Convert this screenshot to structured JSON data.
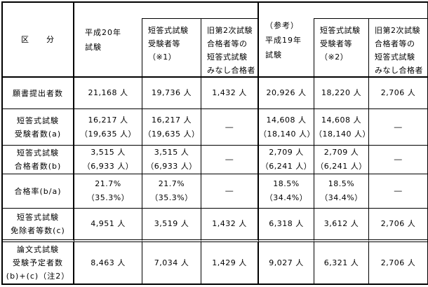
{
  "header": {
    "corner": "区　　分",
    "groups": [
      {
        "label": "平成20年\n試験",
        "sub1": "短答式試験\n受験者等\n（※1）",
        "sub2": "旧第2次試験\n合格者等の\n短答式試験\nみなし合格者"
      },
      {
        "label": "（参考）\n平成19年\n試験",
        "sub1": "短答式試験\n受験者等\n（※2）",
        "sub2": "旧第2次試験\n合格者等の\n短答式試験\nみなし合格者"
      }
    ]
  },
  "rows": [
    {
      "label": "願書提出者数",
      "v": [
        "21,168 人",
        "19,736 人",
        "1,432 人",
        "20,926 人",
        "18,220 人",
        "2,706 人"
      ]
    },
    {
      "label": "短答式試験\n受験者数(a)",
      "v": [
        "16,217 人\n（19,635 人）",
        "16,217 人\n（19,635 人）",
        "―",
        "14,608 人\n（18,140 人）",
        "14,608 人\n（18,140 人）",
        "―"
      ]
    },
    {
      "label": "短答式試験\n合格者数(b)",
      "v": [
        "3,515 人\n（6,933 人）",
        "3,515 人\n（6,933 人）",
        "―",
        "2,709 人\n（6,241 人）",
        "2,709 人\n（6,241 人）",
        "―"
      ]
    },
    {
      "label": "合格率(b/a)",
      "v": [
        "21.7%\n（35.3%）",
        "21.7%\n（35.3%）",
        "―",
        "18.5%\n（34.4%）",
        "18.5%\n（34.4%）",
        "―"
      ]
    },
    {
      "label": "短答式試験\n免除者等数(c)",
      "v": [
        "4,951 人",
        "3,519 人",
        "1,432 人",
        "6,318 人",
        "3,612 人",
        "2,706 人"
      ]
    },
    {
      "label": "論文式試験\n受験予定者数\n(b)+(c)（注2）",
      "v": [
        "8,463 人",
        "7,034 人",
        "1,429 人",
        "9,027 人",
        "6,321 人",
        "2,706 人"
      ]
    }
  ]
}
